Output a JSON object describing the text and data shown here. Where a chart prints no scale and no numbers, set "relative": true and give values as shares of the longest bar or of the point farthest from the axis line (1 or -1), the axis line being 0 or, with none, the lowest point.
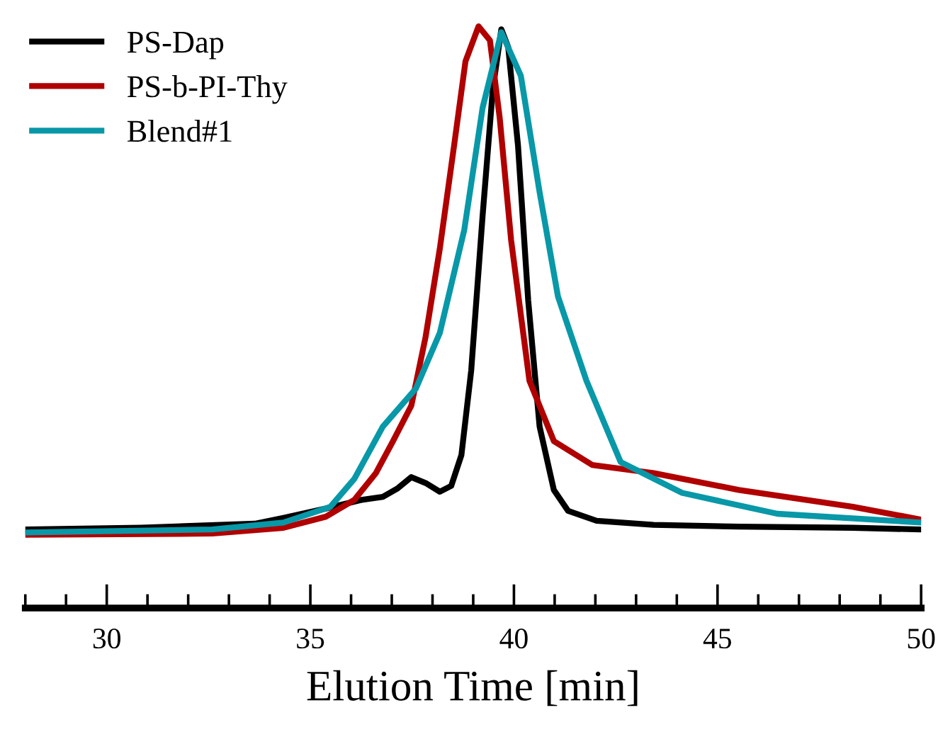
{
  "chart_data": {
    "type": "line",
    "relative": true,
    "xlabel": "Elution Time [min]",
    "xlim": [
      28,
      50
    ],
    "xticks": [
      {
        "value": 28,
        "label": null
      },
      {
        "value": 29,
        "label": null
      },
      30,
      {
        "value": 31,
        "label": null
      },
      {
        "value": 32,
        "label": null
      },
      {
        "value": 33,
        "label": null
      },
      {
        "value": 34,
        "label": null
      },
      35,
      {
        "value": 36,
        "label": null
      },
      {
        "value": 37,
        "label": null
      },
      {
        "value": 38,
        "label": null
      },
      {
        "value": 39,
        "label": null
      },
      40,
      {
        "value": 41,
        "label": null
      },
      {
        "value": 42,
        "label": null
      },
      {
        "value": 43,
        "label": null
      },
      {
        "value": 44,
        "label": null
      },
      45,
      {
        "value": 46,
        "label": null
      },
      {
        "value": 47,
        "label": null
      },
      {
        "value": 48,
        "label": null
      },
      {
        "value": 49,
        "label": null
      },
      50
    ],
    "legend": "top left",
    "grid": false,
    "marker": "none",
    "line_style": "solid",
    "tick_labels": "x",
    "series": [
      {
        "name": "PS-Dap",
        "color": "#000000",
        "x": [
          28.0,
          30.84,
          33.64,
          34.34,
          35.38,
          36.26,
          36.78,
          37.13,
          37.48,
          37.83,
          38.18,
          38.46,
          38.71,
          38.95,
          39.23,
          39.48,
          39.69,
          39.86,
          40.1,
          40.35,
          40.63,
          40.98,
          41.33,
          42.03,
          43.43,
          45.52,
          48.32,
          50.0
        ],
        "values": [
          0.135,
          0.138,
          0.145,
          0.155,
          0.171,
          0.186,
          0.191,
          0.205,
          0.225,
          0.215,
          0.2,
          0.21,
          0.263,
          0.408,
          0.674,
          0.891,
          0.995,
          0.964,
          0.795,
          0.529,
          0.312,
          0.203,
          0.167,
          0.15,
          0.143,
          0.14,
          0.138,
          0.135
        ]
      },
      {
        "name": "PS-b-PI-Thy",
        "color": "#b00000",
        "x": [
          28.0,
          32.59,
          34.34,
          35.38,
          36.08,
          36.61,
          37.03,
          37.48,
          37.83,
          38.18,
          38.53,
          38.81,
          39.13,
          39.41,
          39.65,
          39.93,
          40.38,
          40.98,
          41.92,
          43.43,
          45.52,
          48.32,
          50.0
        ],
        "values": [
          0.126,
          0.128,
          0.138,
          0.157,
          0.186,
          0.232,
          0.287,
          0.348,
          0.466,
          0.618,
          0.795,
          0.94,
          1.0,
          0.976,
          0.843,
          0.633,
          0.391,
          0.287,
          0.246,
          0.232,
          0.203,
          0.174,
          0.152
        ]
      },
      {
        "name": "Blend#1",
        "color": "#0898a8",
        "x": [
          28.0,
          32.59,
          34.34,
          35.49,
          36.08,
          36.78,
          37.59,
          38.18,
          38.78,
          39.23,
          39.69,
          40.17,
          40.63,
          41.08,
          41.78,
          42.62,
          44.13,
          46.47,
          50.0
        ],
        "values": [
          0.13,
          0.135,
          0.147,
          0.174,
          0.222,
          0.312,
          0.377,
          0.473,
          0.65,
          0.86,
          0.99,
          0.915,
          0.715,
          0.536,
          0.391,
          0.251,
          0.198,
          0.162,
          0.147
        ]
      }
    ]
  }
}
